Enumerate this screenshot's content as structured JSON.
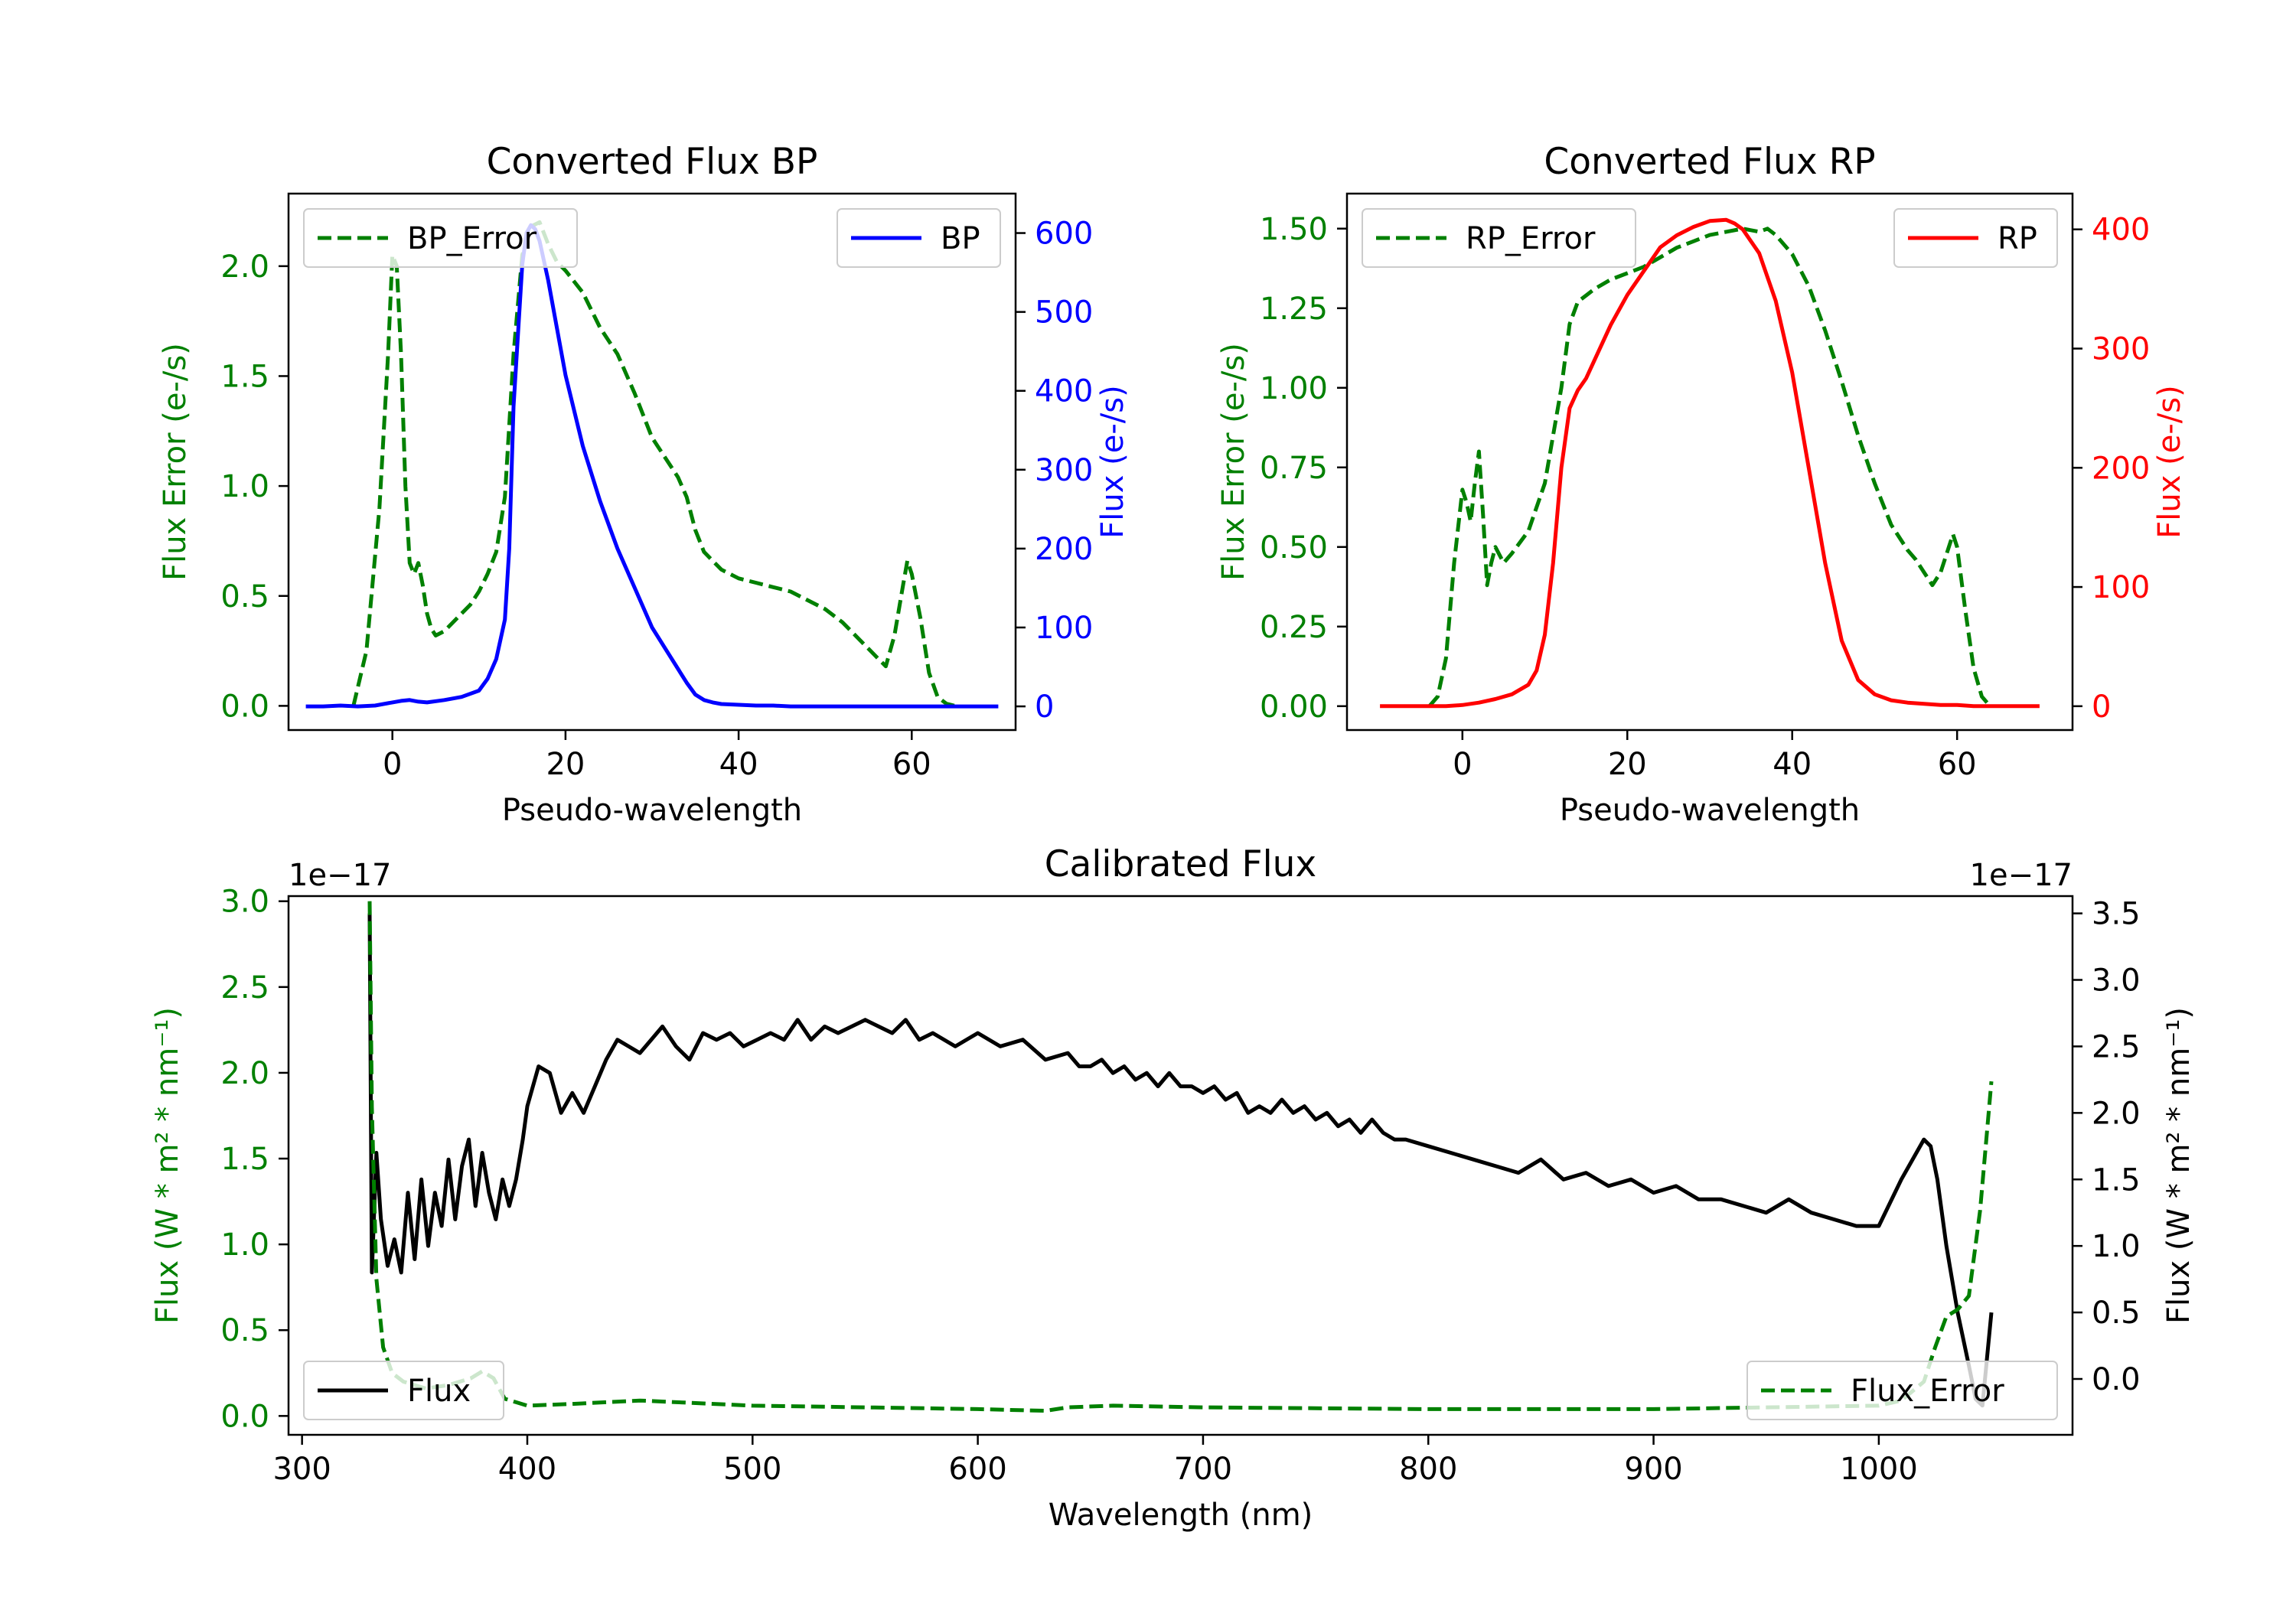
{
  "chart_data": [
    {
      "type": "line",
      "title": "Converted Flux BP",
      "xlabel": "Pseudo-wavelength",
      "ylabel_left": "Flux Error (e-/s)",
      "ylabel_right": "Flux (e-/s)",
      "xlim": [
        -12,
        72
      ],
      "ylim_left": [
        -0.11,
        2.33
      ],
      "ylim_right": [
        -30,
        650
      ],
      "xticks": [
        "0",
        "20",
        "40",
        "60"
      ],
      "yticks_left": [
        "0.0",
        "0.5",
        "1.0",
        "1.5",
        "2.0"
      ],
      "yticks_right": [
        "0",
        "100",
        "200",
        "300",
        "400",
        "500",
        "600"
      ],
      "series": [
        {
          "name": "BP_Error",
          "axis": "left",
          "color": "#008000",
          "dash": true,
          "x": [
            -4.5,
            -3,
            -1.5,
            -0.5,
            0,
            0.5,
            1,
            1.5,
            2,
            2.5,
            3,
            3.5,
            4,
            4.5,
            5,
            6,
            7,
            8,
            9,
            10,
            11,
            12,
            13,
            14,
            15,
            16,
            17,
            18,
            19,
            20,
            22,
            24,
            26,
            28,
            30,
            32,
            33,
            34,
            35,
            36,
            38,
            40,
            42,
            44,
            46,
            48,
            50,
            52,
            54,
            56,
            57,
            58,
            59,
            59.5,
            60,
            61,
            62,
            63,
            64,
            65
          ],
          "y": [
            0.0,
            0.25,
            0.9,
            1.6,
            2.05,
            2.0,
            1.6,
            1.0,
            0.65,
            0.6,
            0.65,
            0.55,
            0.42,
            0.35,
            0.32,
            0.34,
            0.38,
            0.42,
            0.46,
            0.52,
            0.6,
            0.7,
            0.95,
            1.6,
            2.05,
            2.18,
            2.2,
            2.1,
            2.02,
            1.98,
            1.88,
            1.72,
            1.6,
            1.42,
            1.22,
            1.1,
            1.04,
            0.95,
            0.8,
            0.7,
            0.62,
            0.58,
            0.56,
            0.54,
            0.52,
            0.48,
            0.44,
            0.38,
            0.3,
            0.22,
            0.18,
            0.32,
            0.55,
            0.66,
            0.6,
            0.4,
            0.15,
            0.04,
            0.01,
            0.0
          ]
        },
        {
          "name": "BP",
          "axis": "right",
          "color": "#0000ff",
          "dash": false,
          "x": [
            -10,
            -8,
            -6,
            -4,
            -2,
            0,
            1,
            2,
            3,
            4,
            6,
            8,
            10,
            11,
            12,
            13,
            13.5,
            14,
            15,
            15.5,
            16,
            16.5,
            17,
            18,
            19,
            20,
            22,
            24,
            26,
            28,
            30,
            32,
            34,
            35,
            36,
            37,
            38,
            40,
            42,
            44,
            46,
            48,
            50,
            55,
            60,
            65,
            70
          ],
          "y": [
            0,
            0,
            1,
            0,
            1,
            5,
            7,
            8,
            6,
            5,
            8,
            12,
            20,
            35,
            60,
            110,
            200,
            380,
            560,
            600,
            610,
            605,
            590,
            540,
            480,
            420,
            330,
            260,
            200,
            150,
            100,
            65,
            30,
            15,
            8,
            5,
            3,
            2,
            1,
            1,
            0,
            0,
            0,
            0,
            0,
            0,
            0
          ]
        }
      ],
      "legends": [
        "BP_Error",
        "BP"
      ]
    },
    {
      "type": "line",
      "title": "Converted Flux RP",
      "xlabel": "Pseudo-wavelength",
      "ylabel_left": "Flux Error (e-/s)",
      "ylabel_right": "Flux (e-/s)",
      "xlim": [
        -14,
        74
      ],
      "ylim_left": [
        -0.075,
        1.61
      ],
      "ylim_right": [
        -20,
        430
      ],
      "xticks": [
        "0",
        "20",
        "40",
        "60"
      ],
      "yticks_left": [
        "0.00",
        "0.25",
        "0.50",
        "0.75",
        "1.00",
        "1.25",
        "1.50"
      ],
      "yticks_right": [
        "0",
        "100",
        "200",
        "300",
        "400"
      ],
      "series": [
        {
          "name": "RP_Error",
          "axis": "left",
          "color": "#008000",
          "dash": true,
          "x": [
            -4,
            -3,
            -2,
            -1,
            0,
            0.5,
            1,
            1.5,
            2,
            2.5,
            3,
            3.5,
            4,
            5,
            6,
            8,
            10,
            12,
            13,
            14,
            15,
            16,
            18,
            20,
            22,
            24,
            26,
            28,
            30,
            32,
            34,
            36,
            37,
            38,
            40,
            42,
            44,
            46,
            48,
            50,
            52,
            54,
            55,
            56,
            57,
            58,
            59,
            59.5,
            60,
            61,
            62,
            63,
            64
          ],
          "y": [
            0.0,
            0.03,
            0.15,
            0.45,
            0.68,
            0.64,
            0.58,
            0.7,
            0.8,
            0.6,
            0.38,
            0.45,
            0.5,
            0.45,
            0.48,
            0.55,
            0.7,
            1.0,
            1.2,
            1.27,
            1.29,
            1.31,
            1.34,
            1.36,
            1.38,
            1.41,
            1.44,
            1.46,
            1.48,
            1.49,
            1.5,
            1.49,
            1.5,
            1.48,
            1.42,
            1.32,
            1.18,
            1.02,
            0.85,
            0.7,
            0.57,
            0.49,
            0.46,
            0.42,
            0.38,
            0.42,
            0.5,
            0.54,
            0.5,
            0.3,
            0.12,
            0.03,
            0.0
          ]
        },
        {
          "name": "RP",
          "axis": "right",
          "color": "#ff0000",
          "dash": false,
          "x": [
            -10,
            -6,
            -2,
            0,
            2,
            4,
            6,
            8,
            9,
            10,
            11,
            12,
            13,
            14,
            15,
            16,
            18,
            20,
            22,
            24,
            26,
            28,
            30,
            32,
            33,
            34,
            36,
            38,
            40,
            42,
            44,
            46,
            48,
            50,
            52,
            54,
            56,
            58,
            60,
            62,
            64,
            66,
            70
          ],
          "y": [
            0,
            0,
            0,
            1,
            3,
            6,
            10,
            18,
            30,
            60,
            120,
            200,
            250,
            265,
            275,
            290,
            320,
            345,
            365,
            385,
            395,
            402,
            407,
            408,
            405,
            400,
            380,
            340,
            280,
            200,
            120,
            55,
            22,
            10,
            5,
            3,
            2,
            1,
            1,
            0,
            0,
            0,
            0
          ]
        }
      ],
      "legends": [
        "RP_Error",
        "RP"
      ]
    },
    {
      "type": "line",
      "title": "Calibrated Flux",
      "xlabel": "Wavelength (nm)",
      "ylabel_left": "Flux (W * m² * nm⁻¹)",
      "ylabel_right": "Flux (W * m² * nm⁻¹)",
      "offset_left": "1e−17",
      "offset_right": "1e−17",
      "xlim": [
        294,
        1086
      ],
      "ylim_left": [
        -0.11,
        3.03
      ],
      "ylim_right": [
        -0.42,
        3.63
      ],
      "xticks": [
        "300",
        "400",
        "500",
        "600",
        "700",
        "800",
        "900",
        "1000"
      ],
      "yticks_left": [
        "0.0",
        "0.5",
        "1.0",
        "1.5",
        "2.0",
        "2.5",
        "3.0"
      ],
      "yticks_right": [
        "0.0",
        "0.5",
        "1.0",
        "1.5",
        "2.0",
        "2.5",
        "3.0",
        "3.5"
      ],
      "series": [
        {
          "name": "Flux",
          "axis": "right",
          "color": "#000000",
          "dash": false,
          "x": [
            330,
            331,
            333,
            335,
            338,
            341,
            344,
            347,
            350,
            353,
            356,
            359,
            362,
            365,
            368,
            371,
            374,
            377,
            380,
            383,
            386,
            389,
            392,
            395,
            398,
            400,
            405,
            410,
            415,
            420,
            425,
            430,
            435,
            440,
            445,
            450,
            455,
            460,
            466,
            472,
            478,
            484,
            490,
            496,
            502,
            508,
            514,
            520,
            526,
            532,
            538,
            544,
            550,
            556,
            562,
            568,
            574,
            580,
            590,
            600,
            610,
            620,
            630,
            640,
            645,
            650,
            655,
            660,
            665,
            670,
            675,
            680,
            685,
            690,
            695,
            700,
            705,
            710,
            715,
            720,
            725,
            730,
            735,
            740,
            745,
            750,
            755,
            760,
            765,
            770,
            775,
            780,
            785,
            790,
            800,
            810,
            820,
            830,
            840,
            850,
            860,
            870,
            880,
            890,
            900,
            910,
            920,
            930,
            940,
            950,
            960,
            970,
            980,
            990,
            1000,
            1010,
            1020,
            1023,
            1026,
            1030,
            1035,
            1040,
            1043,
            1046,
            1050
          ],
          "y": [
            3.5,
            0.8,
            1.7,
            1.2,
            0.85,
            1.05,
            0.8,
            1.4,
            0.9,
            1.5,
            1.0,
            1.4,
            1.15,
            1.65,
            1.2,
            1.6,
            1.8,
            1.3,
            1.7,
            1.4,
            1.2,
            1.5,
            1.3,
            1.5,
            1.8,
            2.05,
            2.35,
            2.3,
            2.0,
            2.15,
            2.0,
            2.2,
            2.4,
            2.55,
            2.5,
            2.45,
            2.55,
            2.65,
            2.5,
            2.4,
            2.6,
            2.55,
            2.6,
            2.5,
            2.55,
            2.6,
            2.55,
            2.7,
            2.55,
            2.65,
            2.6,
            2.65,
            2.7,
            2.65,
            2.6,
            2.7,
            2.55,
            2.6,
            2.5,
            2.6,
            2.5,
            2.55,
            2.4,
            2.45,
            2.35,
            2.35,
            2.4,
            2.3,
            2.35,
            2.25,
            2.3,
            2.2,
            2.3,
            2.2,
            2.2,
            2.15,
            2.2,
            2.1,
            2.15,
            2.0,
            2.05,
            2.0,
            2.1,
            2.0,
            2.05,
            1.95,
            2.0,
            1.9,
            1.95,
            1.85,
            1.95,
            1.85,
            1.8,
            1.8,
            1.75,
            1.7,
            1.65,
            1.6,
            1.55,
            1.65,
            1.5,
            1.55,
            1.45,
            1.5,
            1.4,
            1.45,
            1.35,
            1.35,
            1.3,
            1.25,
            1.35,
            1.25,
            1.2,
            1.15,
            1.15,
            1.5,
            1.8,
            1.75,
            1.5,
            1.0,
            0.5,
            0.1,
            -0.15,
            -0.2,
            0.5
          ]
        },
        {
          "name": "Flux_Error",
          "axis": "left",
          "color": "#008000",
          "dash": true,
          "x": [
            330,
            331,
            333,
            336,
            340,
            345,
            350,
            355,
            360,
            365,
            370,
            375,
            380,
            385,
            390,
            395,
            400,
            420,
            450,
            500,
            550,
            600,
            630,
            640,
            660,
            700,
            800,
            900,
            950,
            1000,
            1010,
            1020,
            1025,
            1030,
            1035,
            1040,
            1045,
            1050
          ],
          "y": [
            3.0,
            1.8,
            0.8,
            0.4,
            0.25,
            0.2,
            0.18,
            0.16,
            0.17,
            0.18,
            0.2,
            0.22,
            0.26,
            0.22,
            0.1,
            0.08,
            0.06,
            0.07,
            0.09,
            0.06,
            0.05,
            0.04,
            0.03,
            0.05,
            0.06,
            0.05,
            0.04,
            0.04,
            0.05,
            0.06,
            0.09,
            0.2,
            0.4,
            0.58,
            0.62,
            0.7,
            1.2,
            1.95
          ]
        }
      ],
      "legends": [
        "Flux",
        "Flux_Error"
      ]
    }
  ]
}
